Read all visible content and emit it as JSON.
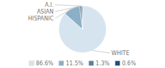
{
  "chart_data": {
    "type": "pie",
    "categories": [
      "WHITE",
      "HISPANIC",
      "ASIAN",
      "A.I."
    ],
    "values": [
      86.6,
      11.5,
      1.3,
      0.6
    ],
    "value_labels": [
      "86.6%",
      "11.5%",
      "1.3%",
      "0.6%"
    ],
    "colors": [
      "#d6e4f0",
      "#8aafc7",
      "#5a82a0",
      "#1f4e79"
    ],
    "legend": "bottom"
  }
}
